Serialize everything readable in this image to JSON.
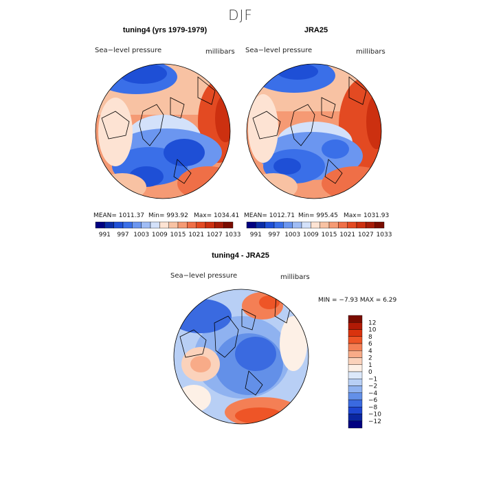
{
  "title": "DJF",
  "panels": [
    {
      "title": "tuning4 (yrs 1979-1979)",
      "var_label": "Sea−level pressure",
      "units": "millibars",
      "stats": {
        "mean": "MEAN= 1011.37",
        "min": "Min= 993.92",
        "max": "Max= 1034.41"
      }
    },
    {
      "title": "JRA25",
      "var_label": "Sea−level pressure",
      "units": "millibars",
      "stats": {
        "mean": "MEAN= 1012.71",
        "min": "Min= 995.45",
        "max": "Max= 1031.93"
      }
    },
    {
      "title": "tuning4 - JRA25",
      "var_label": "Sea−level pressure",
      "units": "millibars",
      "stats": {
        "minmax": "MIN =  −7.93 MAX =   6.29"
      }
    }
  ],
  "colorbar_abs": {
    "colors": [
      "#000080",
      "#0a2ca6",
      "#1e4fd6",
      "#3a6fe8",
      "#6b96f0",
      "#9fbcf5",
      "#d3e1fa",
      "#fde3d3",
      "#f8c2a3",
      "#f59a74",
      "#ef6f47",
      "#e34a22",
      "#cc3010",
      "#a61c08",
      "#7a0c00"
    ],
    "labels": [
      "991",
      "997",
      "1003",
      "1009",
      "1015",
      "1021",
      "1027",
      "1033"
    ]
  },
  "colorbar_diff": {
    "colors": [
      "#7a0c00",
      "#b21a05",
      "#d9330e",
      "#ee5527",
      "#f47f55",
      "#f8ab88",
      "#fbd2bb",
      "#fdf0e6",
      "#dce8fa",
      "#b8cff5",
      "#8fb2f0",
      "#6390e8",
      "#3a6ae0",
      "#1e46d0",
      "#0a26a0",
      "#000080"
    ],
    "labels": [
      "12",
      "10",
      "8",
      "6",
      "4",
      "2",
      "1",
      "0",
      "−1",
      "−2",
      "−4",
      "−6",
      "−8",
      "−10",
      "−12"
    ]
  }
}
